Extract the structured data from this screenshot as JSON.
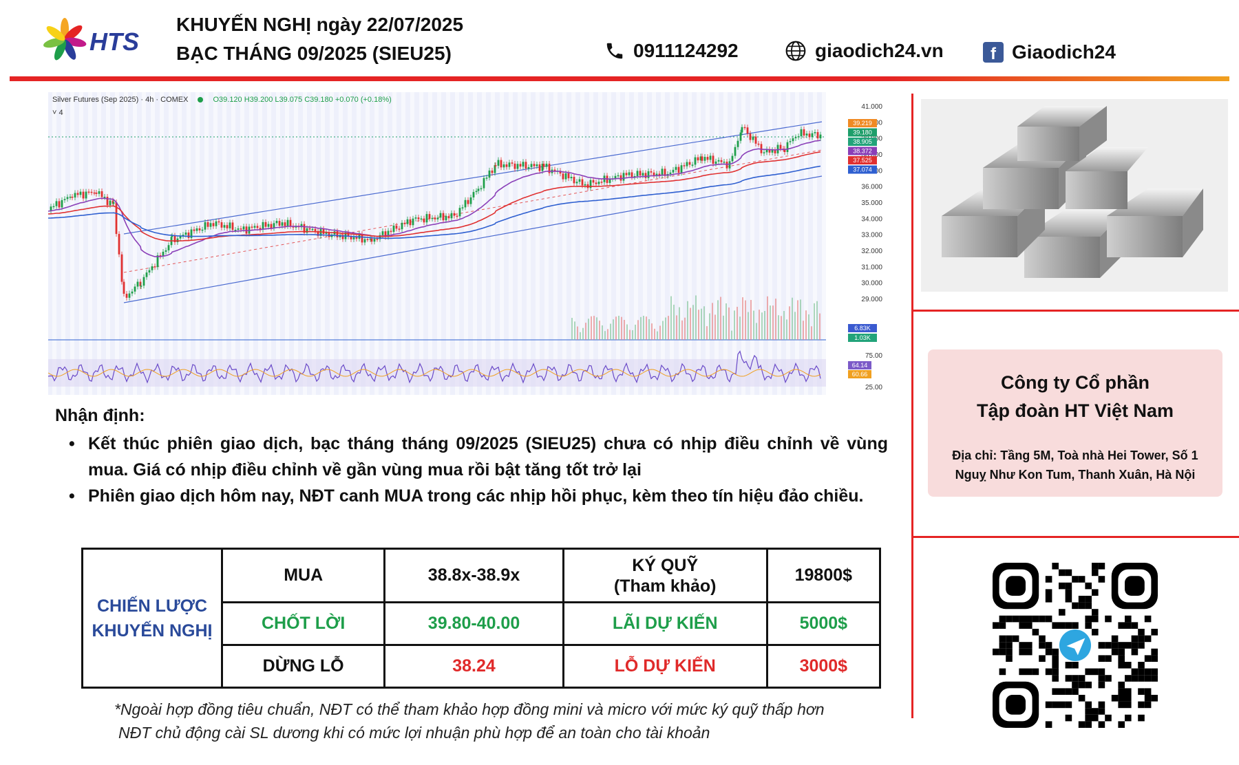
{
  "header": {
    "logo_text": "HTS",
    "title_line1": "KHUYẾN NGHỊ ngày 22/07/2025",
    "title_line2": "BẠC THÁNG 09/2025 (SIEU25)",
    "phone": "0911124292",
    "website": "giaodich24.vn",
    "facebook": "Giaodich24",
    "icons": [
      "phone-icon",
      "globe-icon",
      "facebook-icon"
    ]
  },
  "chart": {
    "header_text": "Silver Futures (Sep 2025) · 4h · COMEX",
    "ohlc_text": "O39.120 H39.200 L39.075 C39.180 +0.070 (+0.18%)",
    "indicator_count": "4",
    "price_ticks": [
      "41.000",
      "40.000",
      "39.000",
      "38.000",
      "37.000",
      "36.000",
      "35.000",
      "34.000",
      "33.000",
      "32.000",
      "31.000",
      "30.000",
      "29.000"
    ],
    "price_labels": [
      {
        "text": "39.219",
        "color": "#f08a24"
      },
      {
        "text": "39.180",
        "color": "#1e9e6a"
      },
      {
        "text": "38.905",
        "color": "#22a37a"
      },
      {
        "text": "38.372",
        "color": "#8a3fb8"
      },
      {
        "text": "37.525",
        "color": "#e03030"
      },
      {
        "text": "37.074",
        "color": "#2e5fd0"
      }
    ],
    "volume_labels": [
      {
        "text": "6.83K",
        "color": "#3a5ad0"
      },
      {
        "text": "1.03K",
        "color": "#22a37a"
      }
    ],
    "rsi_ticks": [
      "75.00",
      "25.00"
    ],
    "rsi_labels": [
      {
        "text": "64.14",
        "color": "#7b5ac8"
      },
      {
        "text": "60.66",
        "color": "#f0a020"
      }
    ]
  },
  "analysis": {
    "heading": "Nhận định:",
    "bullets": [
      "Kết thúc phiên giao dịch, bạc tháng tháng 09/2025 (SIEU25) chưa có nhịp điều chỉnh về vùng mua. Giá có nhịp điều chỉnh về gần vùng mua rồi bật tăng tốt trở lại",
      "Phiên giao dịch hôm nay, NĐT canh MUA trong các nhịp hồi phục, kèm theo tín hiệu đảo chiều."
    ]
  },
  "strategy": {
    "label_line1": "CHIẾN LƯỢC",
    "label_line2": "KHUYẾN NGHỊ",
    "rows": [
      [
        "MUA",
        "38.8x-38.9x",
        "KÝ QUỸ (Tham khảo)",
        "19800$"
      ],
      [
        "CHỐT LỜI",
        "39.80-40.00",
        "LÃI DỰ KIẾN",
        "5000$"
      ],
      [
        "DỪNG LỖ",
        "38.24",
        "LỖ DỰ KIẾN",
        "3000$"
      ]
    ],
    "margin_line1": "KÝ QUỸ",
    "margin_line2": "(Tham khảo)"
  },
  "notes": [
    "*Ngoài hợp đồng tiêu chuẩn, NĐT có thể tham khảo hợp đồng mini và micro với mức ký quỹ thấp hơn",
    "NĐT chủ động cài SL dương khi có mức lợi nhuận phù hợp để an toàn cho tài khoản"
  ],
  "company": {
    "name_line1": "Công ty Cổ phần",
    "name_line2": "Tập đoàn HT Việt Nam",
    "address_line1": "Địa chỉ: Tầng 5M, Toà nhà Hei Tower, Số 1",
    "address_line2": "Nguỵ Như Kon Tum, Thanh Xuân, Hà Nội"
  },
  "colors": {
    "accent_red": "#e52424",
    "brand_blue": "#2a3d9a",
    "green": "#1e9e4a",
    "company_bg": "#f8dcdc"
  }
}
